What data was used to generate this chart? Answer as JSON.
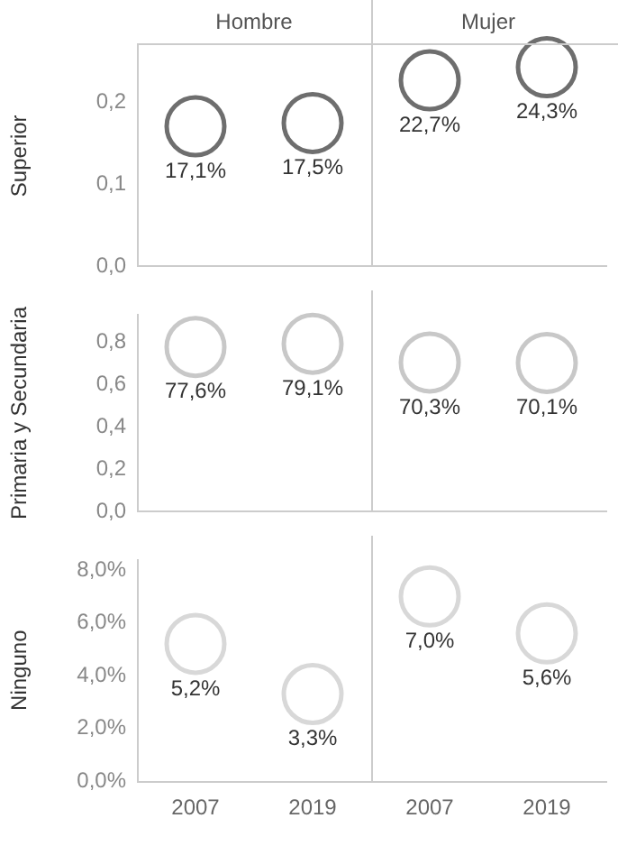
{
  "chart_data": [
    {
      "type": "scatter",
      "ylabel": "Superior",
      "annotations": [
        "Hombre",
        "Mujer"
      ],
      "categories": [
        "2007",
        "2019",
        "2007",
        "2019"
      ],
      "series": [
        {
          "color": "#6e6e6e",
          "values": [
            0.171,
            0.175,
            0.227,
            0.243
          ],
          "value_labels": [
            "17,1%",
            "17,5%",
            "22,7%",
            "24,3%"
          ]
        }
      ],
      "ylim": [
        0,
        0.27
      ],
      "yticks": [
        {
          "value": 0,
          "label": "0,0"
        },
        {
          "value": 0.1,
          "label": "0,1"
        },
        {
          "value": 0.2,
          "label": "0,2"
        }
      ],
      "tick_labels": "y",
      "marker": "circle",
      "grid": false
    },
    {
      "type": "scatter",
      "ylabel": "Primaria y Secundaria",
      "categories": [
        "2007",
        "2019",
        "2007",
        "2019"
      ],
      "series": [
        {
          "color": "#c8c8c8",
          "values": [
            0.776,
            0.791,
            0.703,
            0.701
          ],
          "value_labels": [
            "77,6%",
            "79,1%",
            "70,3%",
            "70,1%"
          ]
        }
      ],
      "ylim": [
        0,
        0.93
      ],
      "yticks": [
        {
          "value": 0,
          "label": "0,0"
        },
        {
          "value": 0.2,
          "label": "0,2"
        },
        {
          "value": 0.4,
          "label": "0,4"
        },
        {
          "value": 0.6,
          "label": "0,6"
        },
        {
          "value": 0.8,
          "label": "0,8"
        }
      ],
      "tick_labels": "y",
      "marker": "circle",
      "grid": false
    },
    {
      "type": "scatter",
      "ylabel": "Ninguno",
      "categories": [
        "2007",
        "2019",
        "2007",
        "2019"
      ],
      "series": [
        {
          "color": "#d8d8d8",
          "values": [
            5.2,
            3.3,
            7.0,
            5.6
          ],
          "value_labels": [
            "5,2%",
            "3,3%",
            "7,0%",
            "5,6%"
          ]
        }
      ],
      "ylim": [
        0,
        8.4
      ],
      "yticks": [
        {
          "value": 0,
          "label": "0,0%"
        },
        {
          "value": 2,
          "label": "2,0%"
        },
        {
          "value": 4,
          "label": "4,0%"
        },
        {
          "value": 6,
          "label": "6,0%"
        },
        {
          "value": 8,
          "label": "8,0%"
        }
      ],
      "marker": "circle",
      "grid": false
    }
  ]
}
